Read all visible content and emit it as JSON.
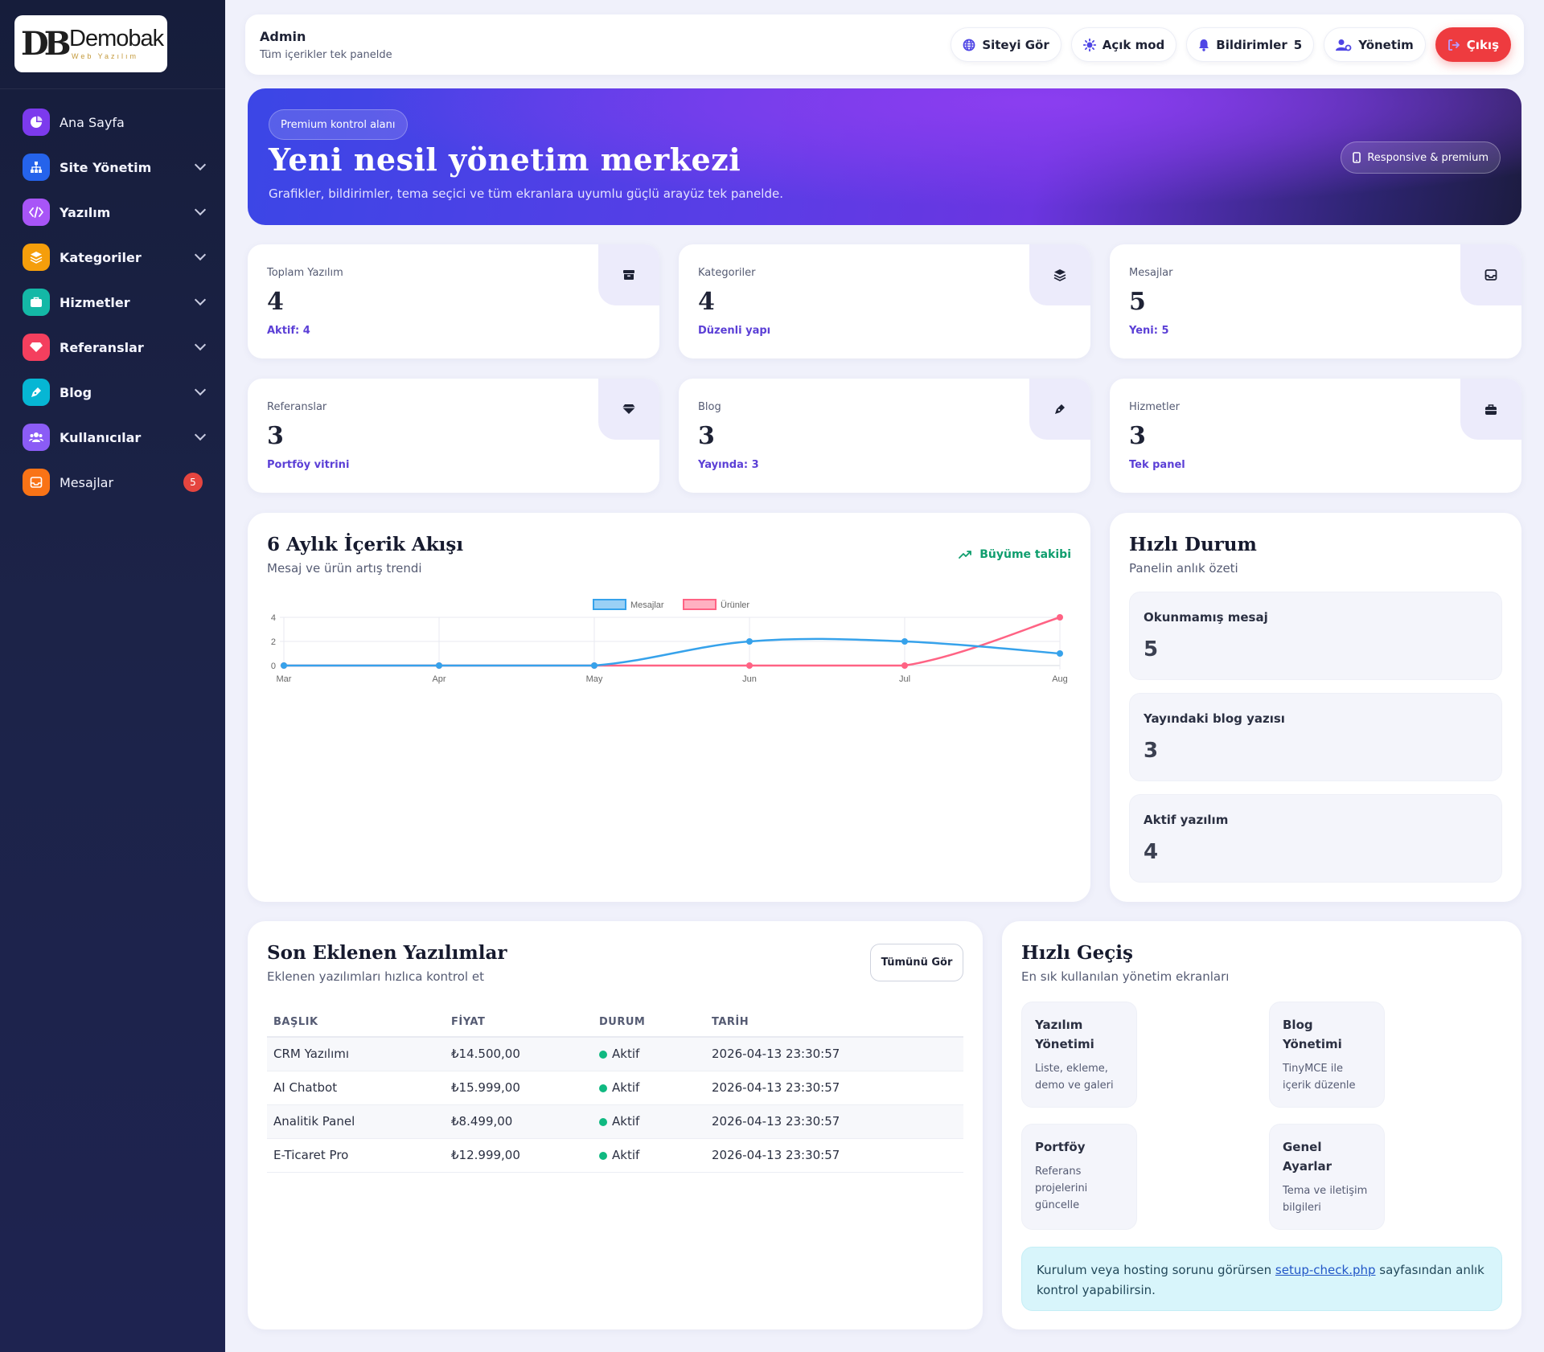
{
  "brand": {
    "mark": "DB",
    "name": "Demobak",
    "tagline": "Web Yazılım"
  },
  "sidebar": {
    "items": [
      {
        "label": "Ana Sayfa",
        "icon": "pie-chart-icon",
        "color": "#7c3aed",
        "bold": false,
        "chevron": false
      },
      {
        "label": "Site Yönetim",
        "icon": "sitemap-icon",
        "color": "#2563eb",
        "bold": true,
        "chevron": true
      },
      {
        "label": "Yazılım",
        "icon": "code-icon",
        "color": "#a855f7",
        "bold": true,
        "chevron": true
      },
      {
        "label": "Kategoriler",
        "icon": "layers-icon",
        "color": "#f59e0b",
        "bold": true,
        "chevron": true
      },
      {
        "label": "Hizmetler",
        "icon": "briefcase-icon",
        "color": "#14b8a6",
        "bold": true,
        "chevron": true
      },
      {
        "label": "Referanslar",
        "icon": "gem-icon",
        "color": "#f43f5e",
        "bold": true,
        "chevron": true
      },
      {
        "label": "Blog",
        "icon": "pen-nib-icon",
        "color": "#06b6d4",
        "bold": true,
        "chevron": true
      },
      {
        "label": "Kullanıcılar",
        "icon": "users-icon",
        "color": "#8b5cf6",
        "bold": true,
        "chevron": true
      },
      {
        "label": "Mesajlar",
        "icon": "inbox-icon",
        "color": "#f97316",
        "bold": false,
        "chevron": false,
        "badge": "5"
      }
    ]
  },
  "topbar": {
    "title": "Admin",
    "subtitle": "Tüm içerikler tek panelde",
    "buttons": {
      "view_site": "Siteyi Gör",
      "light_mode": "Açık mod",
      "notifications": "Bildirimler",
      "notifications_count": "5",
      "management": "Yönetim",
      "logout": "Çıkış"
    }
  },
  "hero": {
    "pill": "Premium kontrol alanı",
    "title": "Yeni nesil yönetim merkezi",
    "subtitle": "Grafikler, bildirimler, tema seçici ve tüm ekranlara uyumlu güçlü arayüz tek panelde.",
    "badge": "Responsive & premium"
  },
  "stats": [
    {
      "label": "Toplam Yazılım",
      "value": "4",
      "foot": "Aktif: 4",
      "icon": "box-icon"
    },
    {
      "label": "Kategoriler",
      "value": "4",
      "foot": "Düzenli yapı",
      "icon": "layers-icon"
    },
    {
      "label": "Mesajlar",
      "value": "5",
      "foot": "Yeni: 5",
      "icon": "inbox-icon"
    },
    {
      "label": "Referanslar",
      "value": "3",
      "foot": "Portföy vitrini",
      "icon": "gem-icon"
    },
    {
      "label": "Blog",
      "value": "3",
      "foot": "Yayında: 3",
      "icon": "pen-nib-icon"
    },
    {
      "label": "Hizmetler",
      "value": "3",
      "foot": "Tek panel",
      "icon": "briefcase-icon"
    }
  ],
  "flow": {
    "title": "6 Aylık İçerik Akışı",
    "subtitle": "Mesaj ve ürün artış trendi",
    "growth_label": "Büyüme takibi"
  },
  "chart_data": {
    "type": "line",
    "x": [
      "Mar",
      "Apr",
      "May",
      "Jun",
      "Jul",
      "Aug"
    ],
    "series": [
      {
        "name": "Mesajlar",
        "values": [
          0,
          0,
          0,
          2,
          2,
          1
        ],
        "color": "#36a2eb"
      },
      {
        "name": "Ürünler",
        "values": [
          0,
          0,
          0,
          0,
          0,
          4
        ],
        "color": "#ff6384"
      }
    ],
    "yticks": [
      0,
      2,
      4
    ],
    "ylim": [
      0,
      4
    ],
    "legend": "top",
    "grid": true,
    "smooth": true
  },
  "quick_status": {
    "title": "Hızlı Durum",
    "subtitle": "Panelin anlık özeti",
    "items": [
      {
        "label": "Okunmamış mesaj",
        "value": "5"
      },
      {
        "label": "Yayındaki blog yazısı",
        "value": "3"
      },
      {
        "label": "Aktif yazılım",
        "value": "4"
      }
    ]
  },
  "recent": {
    "title": "Son Eklenen Yazılımlar",
    "subtitle": "Eklenen yazılımları hızlıca kontrol et",
    "see_all": "Tümünü Gör",
    "columns": [
      "BAŞLIK",
      "FİYAT",
      "DURUM",
      "TARİH"
    ],
    "rows": [
      {
        "title": "CRM Yazılımı",
        "price": "₺14.500,00",
        "status": "Aktif",
        "date": "2026-04-13 23:30:57"
      },
      {
        "title": "AI Chatbot",
        "price": "₺15.999,00",
        "status": "Aktif",
        "date": "2026-04-13 23:30:57"
      },
      {
        "title": "Analitik Panel",
        "price": "₺8.499,00",
        "status": "Aktif",
        "date": "2026-04-13 23:30:57"
      },
      {
        "title": "E-Ticaret Pro",
        "price": "₺12.999,00",
        "status": "Aktif",
        "date": "2026-04-13 23:30:57"
      }
    ],
    "status_color": "#10b981"
  },
  "quick_nav": {
    "title": "Hızlı Geçiş",
    "subtitle": "En sık kullanılan yönetim ekranları",
    "items": [
      {
        "title": "Yazılım Yönetimi",
        "desc": "Liste, ekleme, demo ve galeri"
      },
      {
        "title": "Blog Yönetimi",
        "desc": "TinyMCE ile içerik düzenle"
      },
      {
        "title": "Portföy",
        "desc": "Referans projelerini güncelle"
      },
      {
        "title": "Genel Ayarlar",
        "desc": "Tema ve iletişim bilgileri"
      }
    ],
    "alert_before": "Kurulum veya hosting sorunu görürsen ",
    "alert_link": "setup-check.php",
    "alert_after": " sayfasından anlık kontrol yapabilirsin."
  }
}
